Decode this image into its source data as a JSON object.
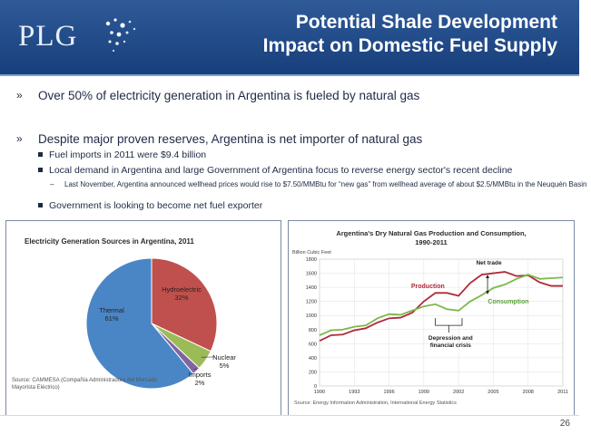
{
  "header": {
    "logo": "PLG",
    "title_line1": "Potential Shale Development",
    "title_line2": "Impact on Domestic Fuel Supply"
  },
  "bullets": {
    "mark": "»",
    "b1": "Over 50% of electricity generation in Argentina is fueled by natural gas",
    "b2": "Despite major proven reserves, Argentina is net importer of natural gas",
    "s1": "Fuel imports in 2011 were $9.4 billion",
    "s2": "Local demand in Argentina and large Government of Argentina focus to reverse energy sector's recent decline",
    "ss1_dash": "–",
    "ss1": "Last November, Argentina announced wellhead prices would rise to $7.50/MMBtu for “new gas” from wellhead average of about $2.5/MMBtu in the Neuquén Basin",
    "s3": "Government is looking to become net fuel exporter"
  },
  "page_number": "26",
  "chart_data": [
    {
      "type": "pie",
      "title": "Electricity Generation Sources in Argentina, 2011",
      "slices": [
        {
          "name": "Thermal",
          "value": 61,
          "label": "61%",
          "color": "#4a86c5"
        },
        {
          "name": "Hydroelectric",
          "value": 32,
          "label": "32%",
          "color": "#c0504d"
        },
        {
          "name": "Nuclear",
          "value": 5,
          "label": "5%",
          "color": "#9bbb59"
        },
        {
          "name": "Imports",
          "value": 2,
          "label": "2%",
          "color": "#8064a2"
        }
      ],
      "source": "Source: CAMMESA (Compañía Administradora del Mercado Mayorista Eléctrico)"
    },
    {
      "type": "line",
      "title_line1": "Argentina's Dry Natural Gas Production and Consumption,",
      "title_line2": "1990-2011",
      "ylabel": "Billion Cubic Feet",
      "ylim": [
        0,
        1800
      ],
      "yticks": [
        0,
        200,
        400,
        600,
        800,
        1000,
        1200,
        1400,
        1600,
        1800
      ],
      "xlim": [
        1990,
        2011
      ],
      "xticks": [
        1990,
        1993,
        1996,
        1999,
        2002,
        2005,
        2008,
        2011
      ],
      "grid": true,
      "series": [
        {
          "name": "Production",
          "color": "#b02a3a",
          "x": [
            1990,
            1991,
            1992,
            1993,
            1994,
            1995,
            1996,
            1997,
            1998,
            1999,
            2000,
            2001,
            2002,
            2003,
            2004,
            2005,
            2006,
            2007,
            2008,
            2009,
            2010,
            2011
          ],
          "values": [
            640,
            720,
            730,
            790,
            820,
            900,
            960,
            970,
            1040,
            1200,
            1320,
            1320,
            1280,
            1460,
            1580,
            1600,
            1620,
            1560,
            1570,
            1470,
            1420,
            1420
          ]
        },
        {
          "name": "Consumption",
          "color": "#7db84a",
          "x": [
            1990,
            1991,
            1992,
            1993,
            1994,
            1995,
            1996,
            1997,
            1998,
            1999,
            2000,
            2001,
            2002,
            2003,
            2004,
            2005,
            2006,
            2007,
            2008,
            2009,
            2010,
            2011
          ],
          "values": [
            720,
            790,
            800,
            840,
            860,
            960,
            1020,
            1010,
            1070,
            1130,
            1160,
            1090,
            1070,
            1200,
            1290,
            1390,
            1440,
            1520,
            1580,
            1520,
            1530,
            1540
          ]
        }
      ],
      "annotations": {
        "net_trade": "Net trade",
        "depression_line1": "Depression and",
        "depression_line2": "financial crisis"
      },
      "source": "Source: Energy Information Administration, International Energy Statistics"
    }
  ]
}
